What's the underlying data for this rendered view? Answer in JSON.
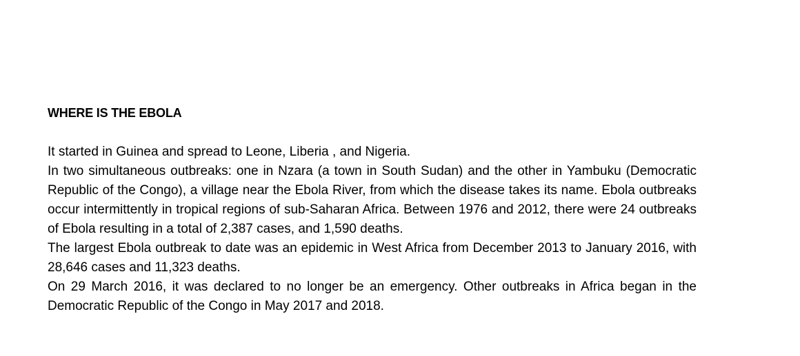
{
  "document": {
    "heading": "WHERE IS THE EBOLA",
    "paragraphs": [
      "It started in Guinea and spread to Leone, Liberia , and Nigeria.",
      "In two simultaneous outbreaks: one in Nzara (a town in South Sudan) and the other in Yambuku (Democratic Republic of the Congo), a village near the Ebola River, from which the disease takes its name. Ebola outbreaks occur intermittently in tropical regions of sub-Saharan Africa. Between 1976 and 2012, there were 24 outbreaks of Ebola resulting in a total of 2,387 cases, and 1,590 deaths.",
      "The largest Ebola outbreak to date was an epidemic in West Africa from December 2013 to January 2016, with 28,646 cases and 11,323 deaths.",
      "On 29 March 2016, it was declared to no longer be an emergency. Other outbreaks in Africa began in the Democratic Republic of the Congo in May 2017 and 2018."
    ]
  }
}
